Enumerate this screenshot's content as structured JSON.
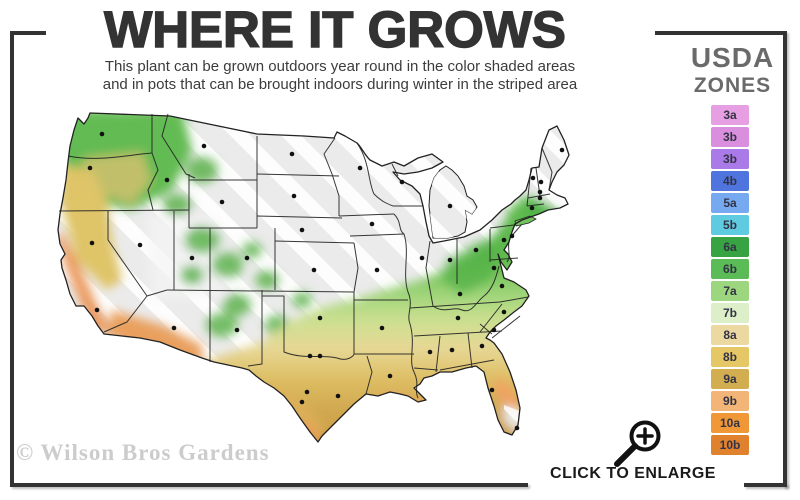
{
  "header": {
    "title": "WHERE IT GROWS",
    "subtitle_line1": "This plant can be grown outdoors year round in the color shaded areas",
    "subtitle_line2": "and in pots that can be brought indoors during winter in the striped area"
  },
  "legend": {
    "title_line1": "USDA",
    "title_line2": "ZONES",
    "zones": [
      {
        "label": "3a",
        "color": "#e79fe4"
      },
      {
        "label": "3b",
        "color": "#d98fdd"
      },
      {
        "label": "3b",
        "color": "#a97ae8"
      },
      {
        "label": "4b",
        "color": "#4f74dd"
      },
      {
        "label": "5a",
        "color": "#77a9f0"
      },
      {
        "label": "5b",
        "color": "#5fcbe0"
      },
      {
        "label": "6a",
        "color": "#37a343"
      },
      {
        "label": "6b",
        "color": "#5bbb57"
      },
      {
        "label": "7a",
        "color": "#9cd77f"
      },
      {
        "label": "7b",
        "color": "#dcefc8"
      },
      {
        "label": "8a",
        "color": "#ecd9a1"
      },
      {
        "label": "8b",
        "color": "#e5c765"
      },
      {
        "label": "9a",
        "color": "#d2ae51"
      },
      {
        "label": "9b",
        "color": "#f2b577"
      },
      {
        "label": "10a",
        "color": "#f09737"
      },
      {
        "label": "10b",
        "color": "#e0812e"
      }
    ]
  },
  "map": {
    "region": "contiguous United States",
    "base_color": "#ebebeb",
    "stripe_color": "#ffffff",
    "state_line_color": "#222222",
    "marker_color": "#111111"
  },
  "enlarge": {
    "label": "CLICK TO ENLARGE",
    "icon": "magnifier-plus-icon"
  },
  "watermark": "© Wilson Bros Gardens"
}
